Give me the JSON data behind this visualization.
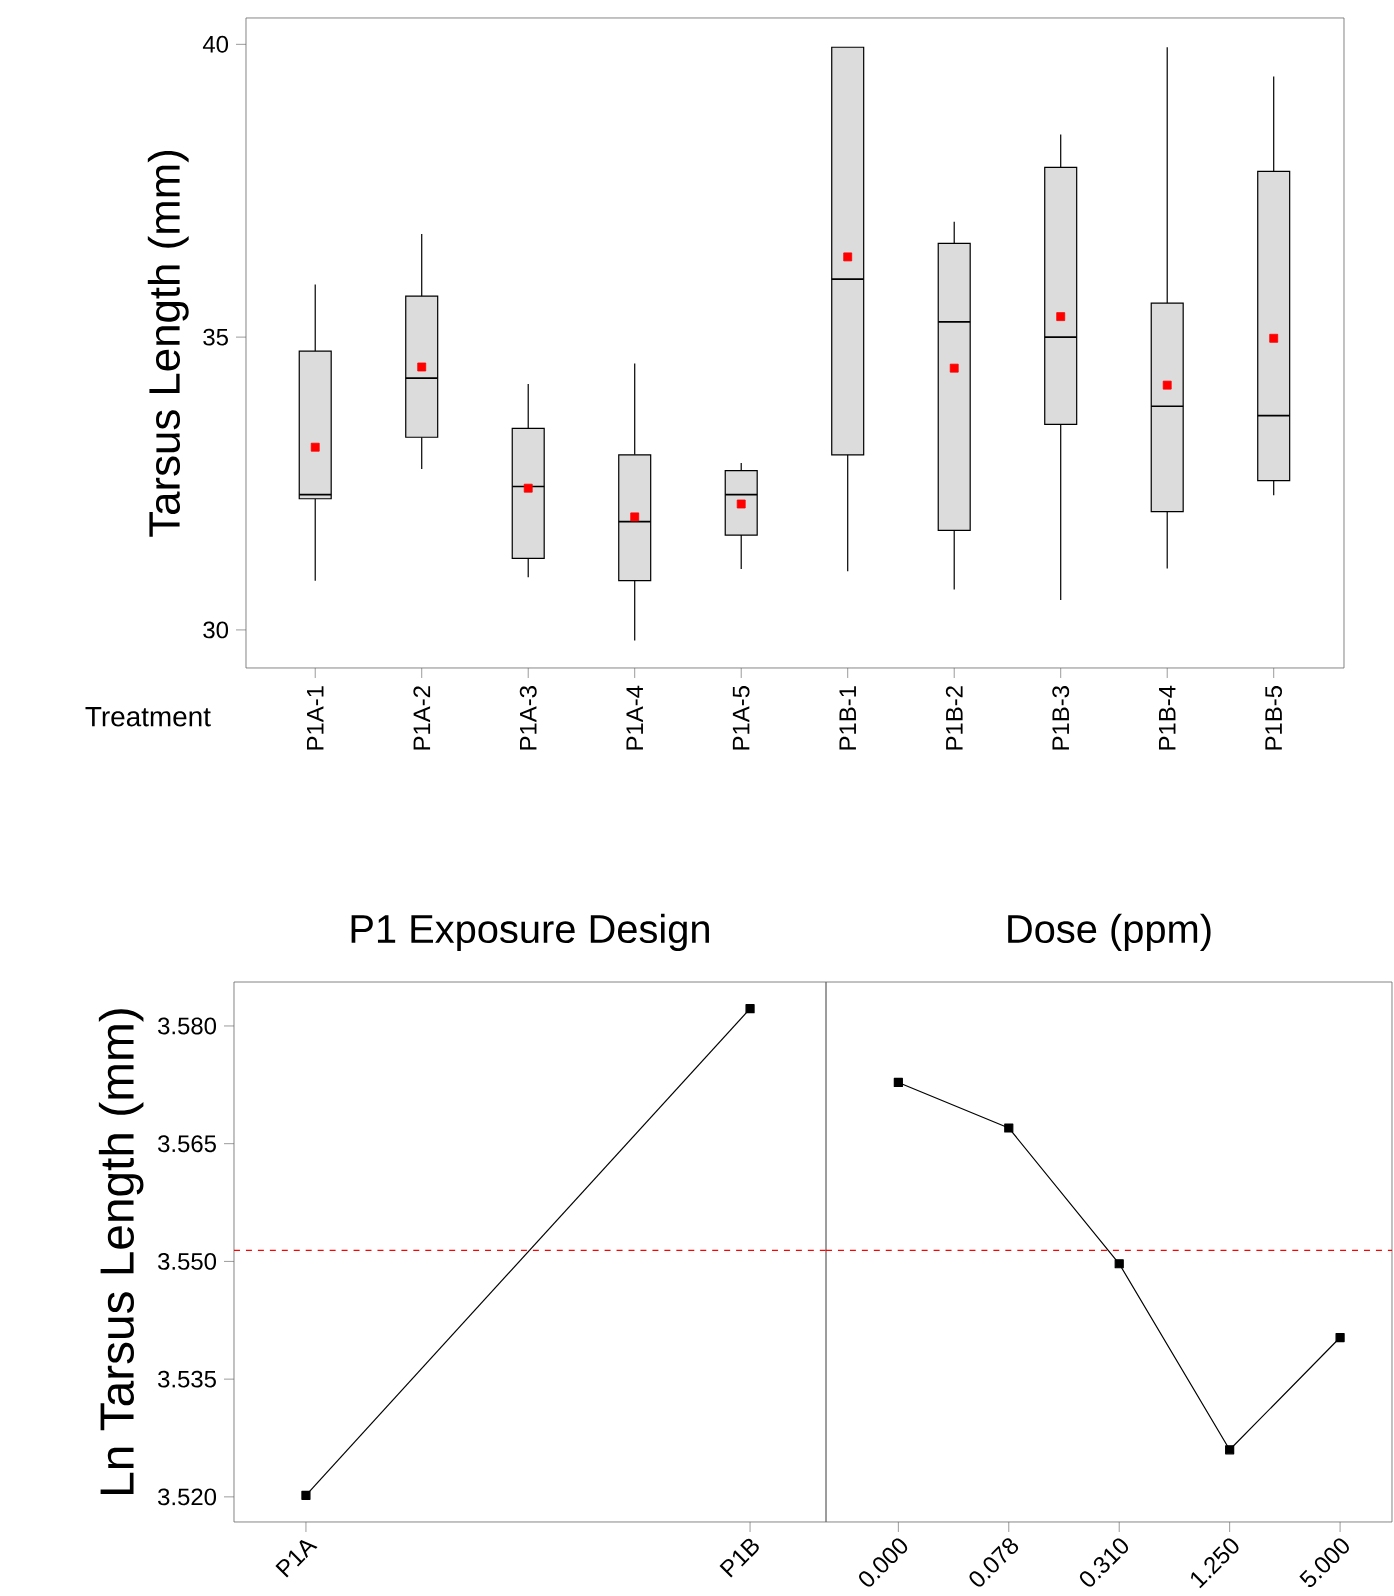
{
  "chart_data": [
    {
      "type": "box",
      "xlabel": "Treatment",
      "ylabel": "Tarsus Length (mm)",
      "categories": [
        "P1A-1",
        "P1A-2",
        "P1A-3",
        "P1A-4",
        "P1A-5",
        "P1B-1",
        "P1B-2",
        "P1B-3",
        "P1B-4",
        "P1B-5"
      ],
      "series": [
        {
          "color": "#dcdcdc",
          "boxes": [
            {
              "low": 30.84,
              "q1": 32.24,
              "median": 32.31,
              "q3": 34.76,
              "high": 35.9,
              "mean": 33.12
            },
            {
              "low": 32.75,
              "q1": 33.29,
              "median": 34.3,
              "q3": 35.7,
              "high": 36.76,
              "mean": 34.49
            },
            {
              "low": 30.9,
              "q1": 31.22,
              "median": 32.45,
              "q3": 33.44,
              "high": 34.2,
              "mean": 32.42
            },
            {
              "low": 29.82,
              "q1": 30.84,
              "median": 31.85,
              "q3": 32.99,
              "high": 34.55,
              "mean": 31.93
            },
            {
              "low": 31.04,
              "q1": 31.62,
              "median": 32.31,
              "q3": 32.72,
              "high": 32.85,
              "mean": 32.15
            },
            {
              "low": 31.0,
              "q1": 32.99,
              "median": 35.99,
              "q3": 39.95,
              "high": 39.95,
              "mean": 36.37
            },
            {
              "low": 30.69,
              "q1": 31.7,
              "median": 35.26,
              "q3": 36.6,
              "high": 36.97,
              "mean": 34.47
            },
            {
              "low": 30.51,
              "q1": 33.51,
              "median": 35.0,
              "q3": 37.9,
              "high": 38.46,
              "mean": 35.35
            },
            {
              "low": 31.05,
              "q1": 32.02,
              "median": 33.82,
              "q3": 35.58,
              "high": 39.95,
              "mean": 34.18
            },
            {
              "low": 32.3,
              "q1": 32.55,
              "median": 33.66,
              "q3": 37.83,
              "high": 39.45,
              "mean": 34.98
            }
          ]
        }
      ],
      "ylim": [
        29.35,
        40.45
      ],
      "yticks": [
        30,
        35,
        40
      ]
    },
    {
      "type": "line",
      "title": "P1 Exposure Design",
      "ylabel": "Ln Tarsus Length (mm)",
      "categories": [
        "P1A",
        "P1B"
      ],
      "series": [
        {
          "color": "#000000",
          "values": [
            3.5202,
            3.5822
          ]
        }
      ],
      "marker": "square",
      "ylim": [
        3.5168,
        3.5856
      ],
      "yticks": [
        {
          "value": 3.52,
          "label": "3.520"
        },
        {
          "value": 3.535,
          "label": "3.535"
        },
        {
          "value": 3.55,
          "label": "3.550"
        },
        {
          "value": 3.565,
          "label": "3.565"
        },
        {
          "value": 3.58,
          "label": "3.580"
        }
      ],
      "ref_lines": [
        {
          "axis": "y",
          "value": 3.5514,
          "color": "#ff0000",
          "line_style": "dashed"
        }
      ]
    },
    {
      "type": "line",
      "title": "Dose (ppm)",
      "categories": [
        "0.000",
        "0.078",
        "0.310",
        "1.250",
        "5.000"
      ],
      "series": [
        {
          "color": "#000000",
          "values": [
            3.5728,
            3.567,
            3.5497,
            3.526,
            3.5403
          ]
        }
      ],
      "marker": "square",
      "tick_labels": "x",
      "ylim": [
        3.5168,
        3.5856
      ],
      "ref_lines": [
        {
          "axis": "y",
          "value": 3.5514,
          "color": "#ff0000",
          "line_style": "dashed"
        }
      ]
    }
  ]
}
